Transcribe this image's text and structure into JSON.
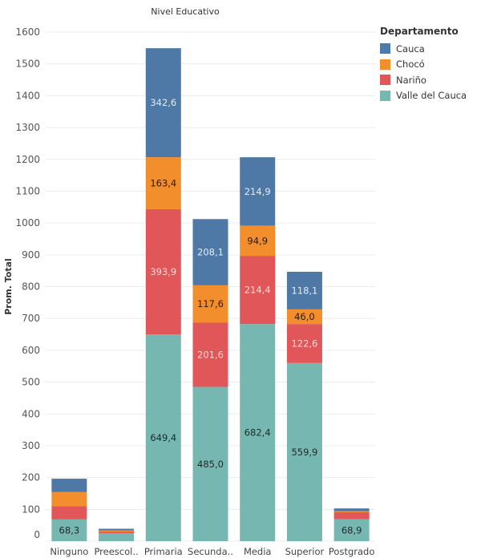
{
  "chart_data": {
    "type": "bar",
    "stacked": true,
    "title": "Nivel Educativo",
    "xlabel": "",
    "ylabel": "Prom. Total",
    "ylim": [
      0,
      1600
    ],
    "yticks": [
      0,
      100,
      200,
      300,
      400,
      500,
      600,
      700,
      800,
      900,
      1000,
      1100,
      1200,
      1300,
      1400,
      1500,
      1600
    ],
    "grid": true,
    "categories": [
      "Ninguno",
      "Preescol..",
      "Primaria",
      "Secunda..",
      "Media",
      "Superior",
      "Postgrado"
    ],
    "series": [
      {
        "name": "Valle del Cauca",
        "color": "#76b7b2",
        "values": [
          68.3,
          25,
          649.4,
          485.0,
          682.4,
          559.9,
          68.9
        ]
      },
      {
        "name": "Nariño",
        "color": "#e15759",
        "values": [
          42,
          5,
          393.9,
          201.6,
          214.4,
          122.6,
          22
        ]
      },
      {
        "name": "Chocó",
        "color": "#f28e2b",
        "values": [
          44,
          4,
          163.4,
          117.6,
          94.9,
          46.0,
          3
        ]
      },
      {
        "name": "Cauca",
        "color": "#4e79a7",
        "values": [
          42,
          5,
          342.6,
          208.1,
          214.9,
          118.1,
          9
        ]
      }
    ],
    "data_labels": [
      {
        "series": "Valle del Cauca",
        "category": "Ninguno",
        "text": "68,3"
      },
      {
        "series": "Valle del Cauca",
        "category": "Primaria",
        "text": "649,4"
      },
      {
        "series": "Valle del Cauca",
        "category": "Secunda..",
        "text": "485,0"
      },
      {
        "series": "Valle del Cauca",
        "category": "Media",
        "text": "682,4"
      },
      {
        "series": "Valle del Cauca",
        "category": "Superior",
        "text": "559,9"
      },
      {
        "series": "Valle del Cauca",
        "category": "Postgrado",
        "text": "68,9"
      },
      {
        "series": "Nariño",
        "category": "Primaria",
        "text": "393,9"
      },
      {
        "series": "Nariño",
        "category": "Secunda..",
        "text": "201,6"
      },
      {
        "series": "Nariño",
        "category": "Media",
        "text": "214,4"
      },
      {
        "series": "Nariño",
        "category": "Superior",
        "text": "122,6"
      },
      {
        "series": "Chocó",
        "category": "Primaria",
        "text": "163,4"
      },
      {
        "series": "Chocó",
        "category": "Secunda..",
        "text": "117,6"
      },
      {
        "series": "Chocó",
        "category": "Media",
        "text": "94,9"
      },
      {
        "series": "Chocó",
        "category": "Superior",
        "text": "46,0"
      },
      {
        "series": "Cauca",
        "category": "Primaria",
        "text": "342,6"
      },
      {
        "series": "Cauca",
        "category": "Secunda..",
        "text": "208,1"
      },
      {
        "series": "Cauca",
        "category": "Media",
        "text": "214,9"
      },
      {
        "series": "Cauca",
        "category": "Superior",
        "text": "118,1"
      }
    ],
    "legend": {
      "title": "Departamento",
      "position": "top-right",
      "items": [
        {
          "label": "Cauca",
          "color": "#4e79a7"
        },
        {
          "label": "Chocó",
          "color": "#f28e2b"
        },
        {
          "label": "Nariño",
          "color": "#e15759"
        },
        {
          "label": "Valle del Cauca",
          "color": "#76b7b2"
        }
      ]
    }
  }
}
